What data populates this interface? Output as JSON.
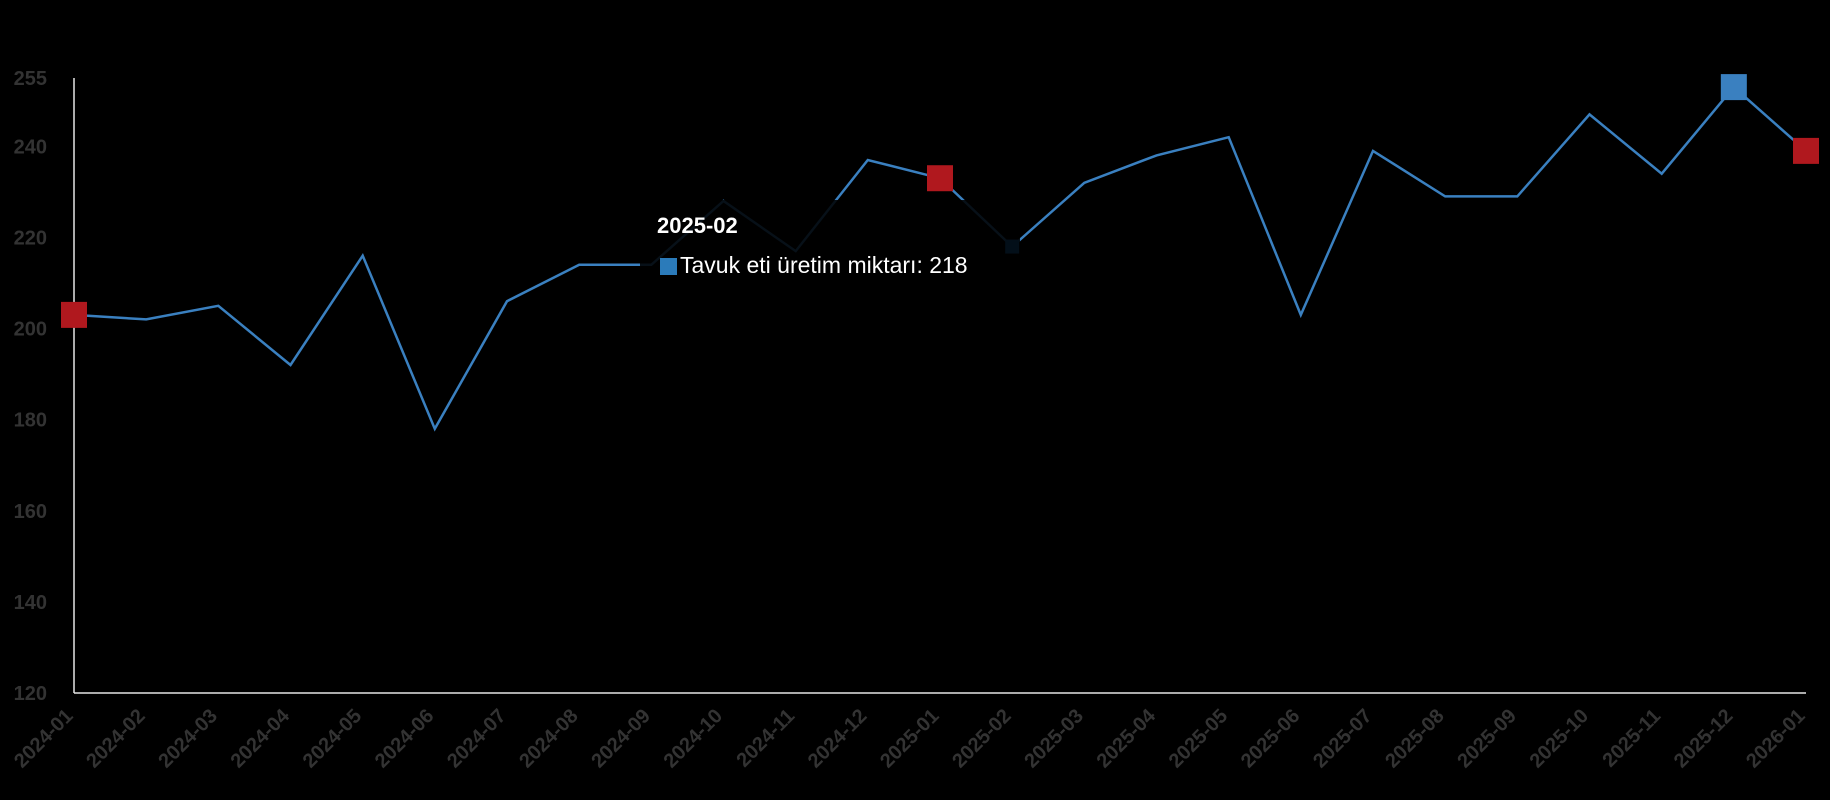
{
  "chart_data": {
    "type": "line",
    "title": "",
    "xlabel": "",
    "ylabel": "",
    "ylim": [
      120,
      255
    ],
    "yticks": [
      120,
      140,
      160,
      180,
      200,
      220,
      240,
      255
    ],
    "categories": [
      "2024-01",
      "2024-02",
      "2024-03",
      "2024-04",
      "2024-05",
      "2024-06",
      "2024-07",
      "2024-08",
      "2024-09",
      "2024-10",
      "2024-11",
      "2024-12",
      "2025-01",
      "2025-02",
      "2025-03",
      "2025-04",
      "2025-05",
      "2025-06",
      "2025-07",
      "2025-08",
      "2025-09",
      "2025-10",
      "2025-11",
      "2025-12",
      "2026-01"
    ],
    "series": [
      {
        "name": "Tavuk eti üretim miktarı",
        "color": "#3a80c0",
        "values": [
          203,
          202,
          205,
          192,
          216,
          178,
          206,
          214,
          214,
          228,
          217,
          237,
          233,
          218,
          232,
          238,
          242,
          203,
          239,
          229,
          229,
          247,
          234,
          253,
          239
        ]
      }
    ],
    "markers": [
      {
        "category": "2024-01",
        "value": 203,
        "color": "#b0181e"
      },
      {
        "category": "2025-01",
        "value": 233,
        "color": "#b0181e"
      },
      {
        "category": "2025-12",
        "value": 253,
        "color": "#3a80c0"
      },
      {
        "category": "2026-01",
        "value": 239,
        "color": "#b0181e"
      }
    ],
    "active_point": {
      "category": "2025-02",
      "value": 218,
      "color": "#1f78c8"
    },
    "grid": false,
    "legend": "none"
  },
  "tooltip": {
    "title": "2025-02",
    "series_label": "Tavuk eti üretim miktarı: 218",
    "swatch_color": "#2b7bba"
  }
}
